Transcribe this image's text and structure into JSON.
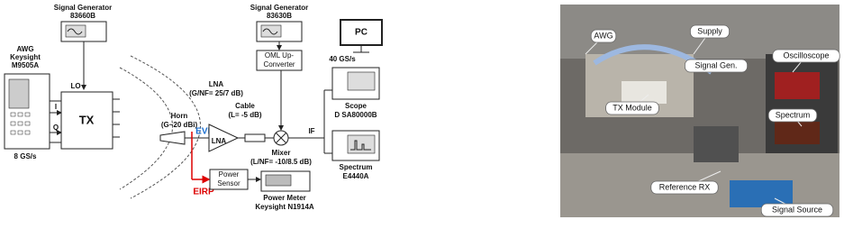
{
  "diagram": {
    "sg1": {
      "title": "Signal Generator",
      "model": "83660B"
    },
    "awg": {
      "title": "AWG",
      "vendor": "Keysight",
      "model": "M9505A",
      "rate": "8 GS/s"
    },
    "tx": {
      "label": "TX",
      "lo": "LO",
      "i": "I",
      "q": "Q"
    },
    "horn": {
      "label": "Horn",
      "spec": "(G~20 dBi)"
    },
    "lna": {
      "label": "LNA",
      "spec": "(G/NF= 25/7 dB)",
      "evm": "EVM",
      "box": "LNA"
    },
    "cable": {
      "label": "Cable",
      "spec": "(L= -5 dB)"
    },
    "mixer": {
      "label": "Mixer",
      "spec": "(L/NF= -10/8.5 dB)"
    },
    "sg2": {
      "title": "Signal Generator",
      "model": "83630B"
    },
    "upconv": {
      "line1": "OML Up-",
      "line2": "Converter"
    },
    "pc": {
      "label": "PC",
      "rate": "40 GS/s"
    },
    "if": "IF",
    "scope": {
      "label": "Scope",
      "model": "D SA80000B"
    },
    "spectrum": {
      "label": "Spectrum",
      "model": "E4440A"
    },
    "eirp": "EIRP",
    "sensor": {
      "line1": "Power",
      "line2": "Sensor"
    },
    "meter": {
      "label": "Power Meter",
      "model": "Keysight N1914A"
    }
  },
  "photo": {
    "labels": [
      "AWG",
      "Supply",
      "Signal Gen.",
      "Oscilloscope",
      "TX Module",
      "Spectrum",
      "Reference RX",
      "Signal Source"
    ]
  }
}
